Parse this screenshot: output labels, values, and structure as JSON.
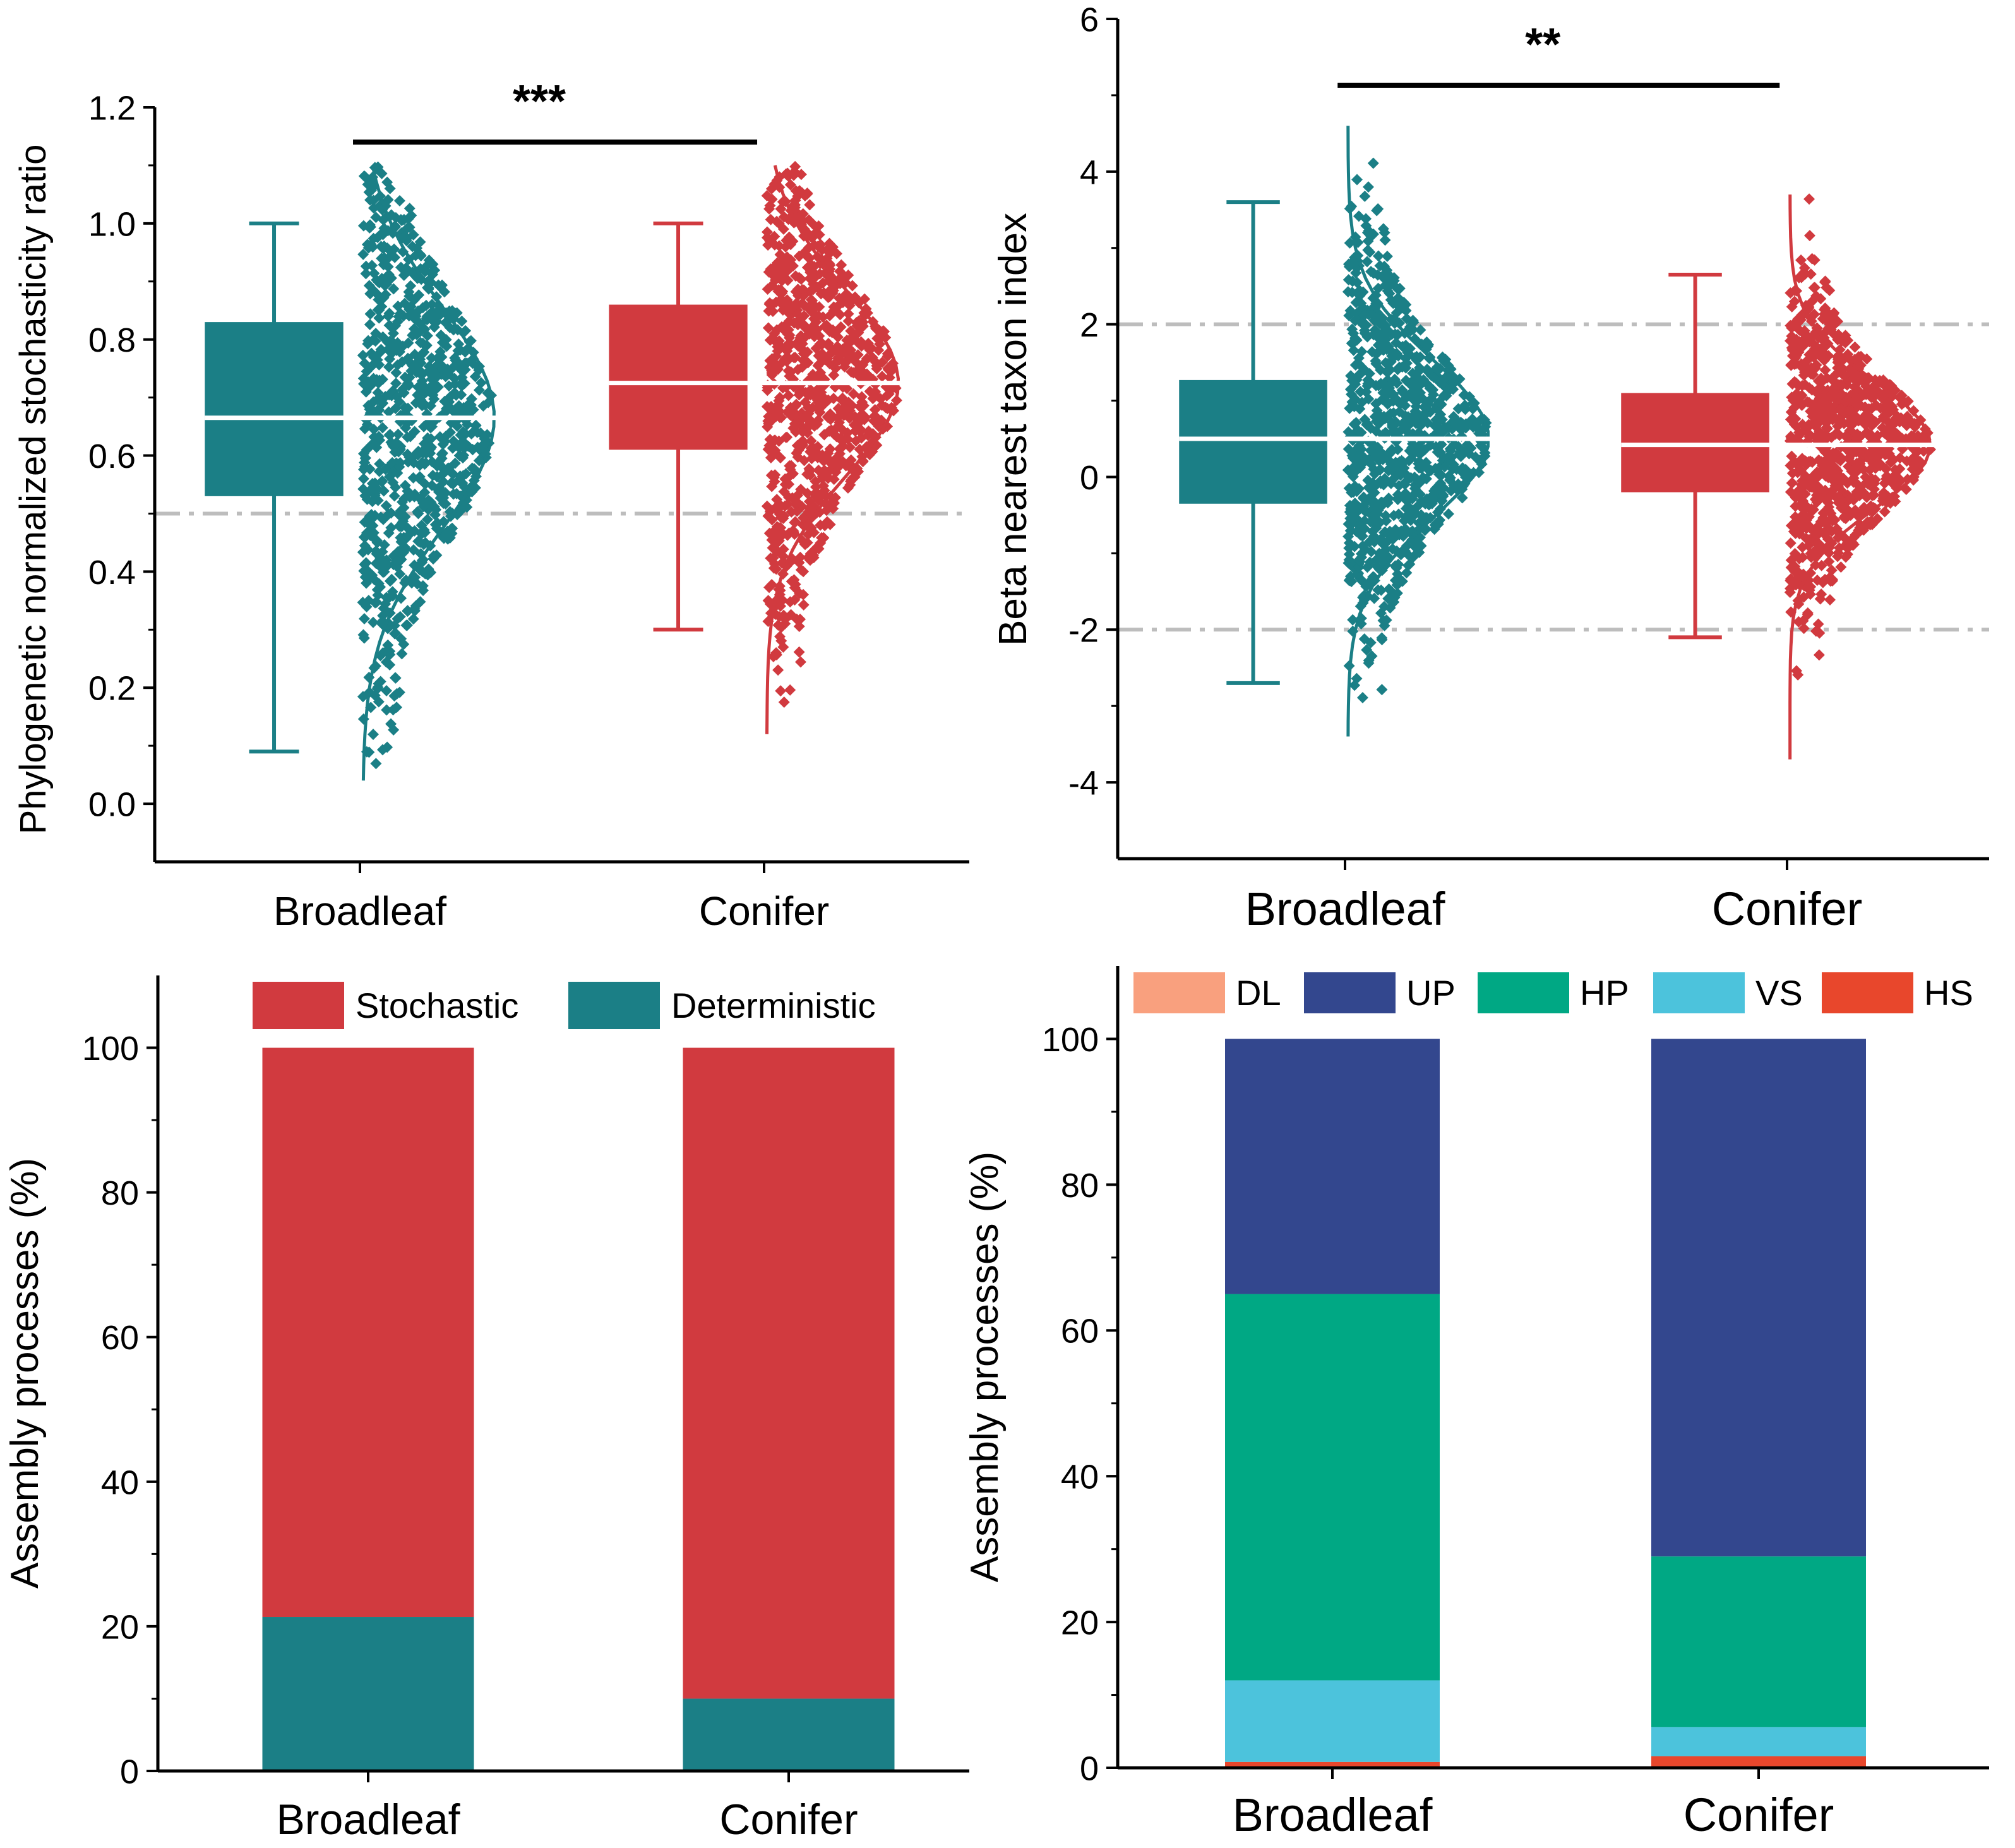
{
  "chart_data": [
    {
      "id": "pnst",
      "type": "box",
      "ylabel": "Phylogenetic normalized stochasticity ratio",
      "xlabel": "",
      "ylim": [
        -0.1,
        1.2
      ],
      "yticks": [
        "0.0",
        "0.2",
        "0.4",
        "0.6",
        "0.8",
        "1.0",
        "1.2"
      ],
      "categories": [
        "Broadleaf",
        "Conifer"
      ],
      "colors": [
        "#1b7f86",
        "#d13a3f"
      ],
      "reference_lines": [
        0.5
      ],
      "significance": "***",
      "boxes": [
        {
          "name": "Broadleaf",
          "min": 0.09,
          "q1": 0.53,
          "median": 0.665,
          "q3": 0.83,
          "max": 1.0,
          "points_min": 0.04,
          "points_max": 1.1
        },
        {
          "name": "Conifer",
          "min": 0.3,
          "q1": 0.61,
          "median": 0.725,
          "q3": 0.86,
          "max": 1.0,
          "points_min": 0.12,
          "points_max": 1.1
        }
      ]
    },
    {
      "id": "bnti",
      "type": "box",
      "ylabel": "Beta nearest taxon index",
      "xlabel": "",
      "ylim": [
        -5,
        6
      ],
      "yticks": [
        "-4",
        "-2",
        "0",
        "2",
        "4",
        "6"
      ],
      "categories": [
        "Broadleaf",
        "Conifer"
      ],
      "colors": [
        "#1b7f86",
        "#d13a3f"
      ],
      "reference_lines": [
        2,
        -2
      ],
      "significance": "**",
      "boxes": [
        {
          "name": "Broadleaf",
          "min": -2.7,
          "q1": -0.35,
          "median": 0.5,
          "q3": 1.27,
          "max": 3.6,
          "points_min": -3.4,
          "points_max": 4.6
        },
        {
          "name": "Conifer",
          "min": -2.1,
          "q1": -0.2,
          "median": 0.42,
          "q3": 1.1,
          "max": 2.65,
          "points_min": -3.7,
          "points_max": 3.7
        }
      ]
    },
    {
      "id": "assembly2",
      "type": "bar",
      "stacked": true,
      "ylabel": "Assembly processes (%)",
      "xlabel": "",
      "ylim": [
        0,
        110
      ],
      "yticks": [
        "0",
        "20",
        "40",
        "60",
        "80",
        "100"
      ],
      "categories": [
        "Broadleaf",
        "Conifer"
      ],
      "legend": "top",
      "series": [
        {
          "name": "Deterministic",
          "color": "#1b7f86",
          "values": [
            21.3,
            10.0
          ]
        },
        {
          "name": "Stochastic",
          "color": "#d13a3f",
          "values": [
            78.7,
            90.0
          ]
        }
      ],
      "legend_order": [
        "Stochastic",
        "Deterministic"
      ]
    },
    {
      "id": "assembly5",
      "type": "bar",
      "stacked": true,
      "ylabel": "Assembly processes (%)",
      "xlabel": "",
      "ylim": [
        0,
        110
      ],
      "yticks": [
        "0",
        "20",
        "40",
        "60",
        "80",
        "100"
      ],
      "categories": [
        "Broadleaf",
        "Conifer"
      ],
      "legend": "top",
      "series": [
        {
          "name": "HS",
          "color": "#e8472c",
          "values": [
            0.8,
            1.6
          ]
        },
        {
          "name": "VS",
          "color": "#4cc3dc",
          "values": [
            11.2,
            4.0
          ]
        },
        {
          "name": "HP",
          "color": "#00a884",
          "values": [
            53.0,
            23.4
          ]
        },
        {
          "name": "UP",
          "color": "#33478e",
          "values": [
            35.0,
            71.0
          ]
        },
        {
          "name": "DL",
          "color": "#f9a07e",
          "values": [
            0.0,
            0.0
          ]
        }
      ],
      "legend_order": [
        "DL",
        "UP",
        "HP",
        "VS",
        "HS"
      ]
    }
  ]
}
